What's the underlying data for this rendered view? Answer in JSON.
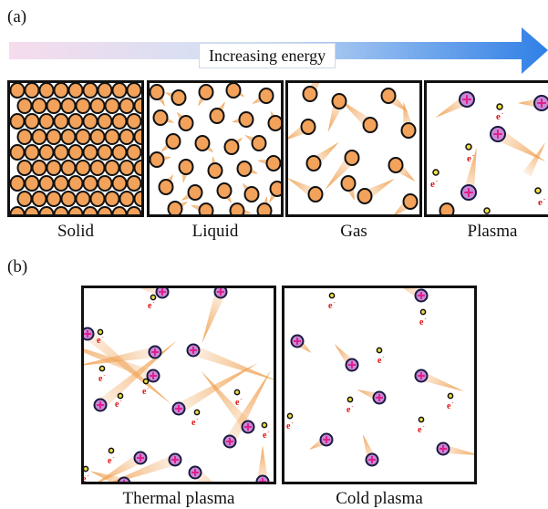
{
  "panel_a_label": "(a)",
  "panel_b_label": "(b)",
  "arrow_label": "Increasing energy",
  "arrow_colors": {
    "start": "#f6dcec",
    "end": "#2f7fe6"
  },
  "states": [
    {
      "name": "Solid"
    },
    {
      "name": "Liquid"
    },
    {
      "name": "Gas"
    },
    {
      "name": "Plasma"
    }
  ],
  "plasma_types": [
    {
      "name": "Thermal plasma"
    },
    {
      "name": "Cold plasma"
    }
  ],
  "electron_symbol": "e",
  "colors": {
    "particle_fill": "#f2a25a",
    "particle_stroke": "#111111",
    "trail": "#f0a050",
    "ion_fill": "#c88ad8",
    "ion_plus": "#e0208a",
    "electron_fill": "#f0e040",
    "electron_text": "#e01010"
  }
}
